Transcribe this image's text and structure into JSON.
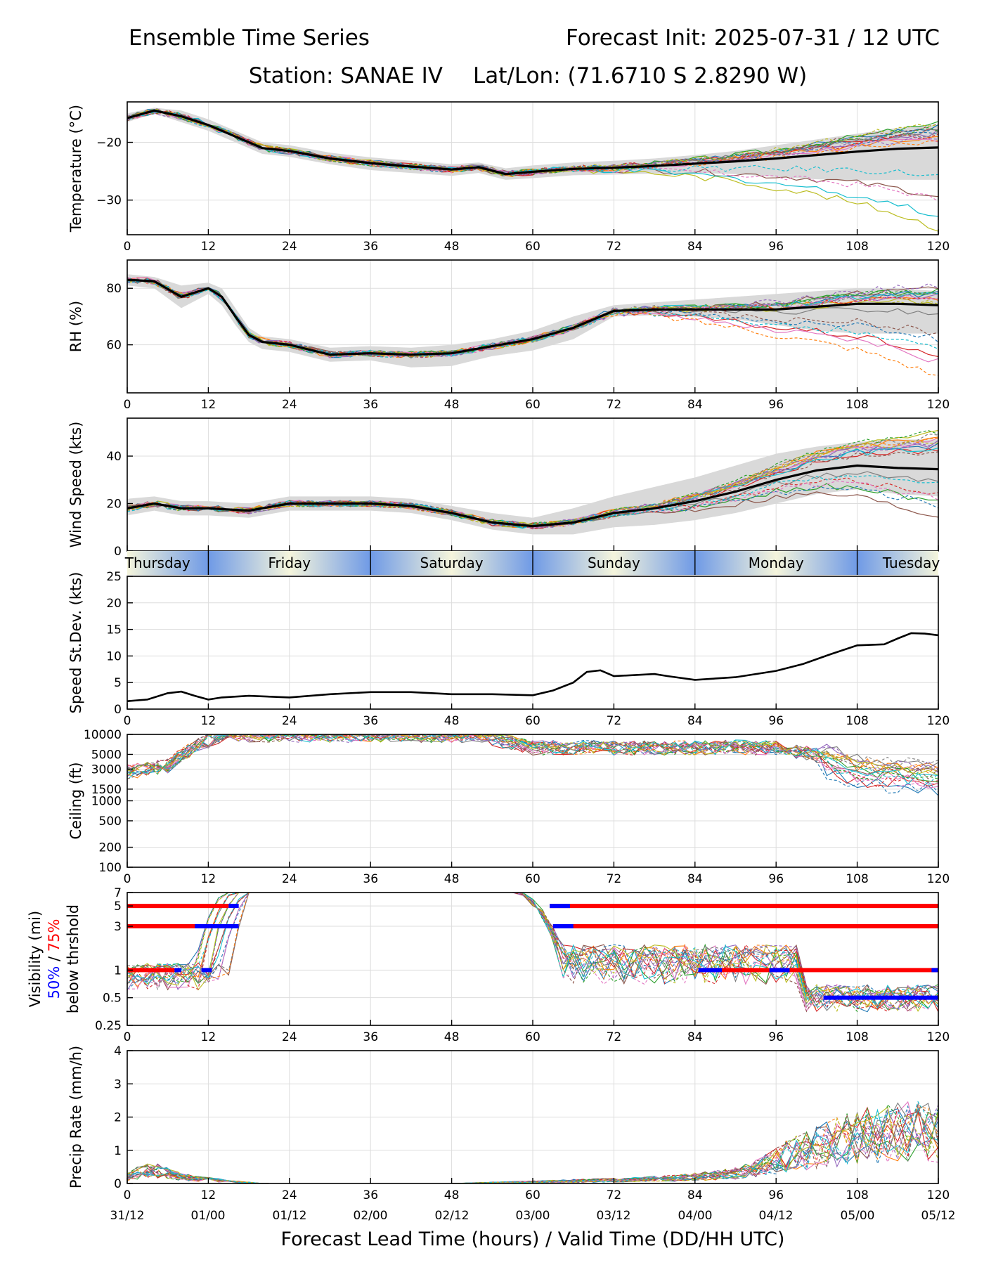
{
  "header": {
    "title_left": "Ensemble Time Series",
    "title_right": "Forecast Init: 2025-07-31 / 12 UTC",
    "station": "Station: SANAE IV",
    "latlon": "Lat/Lon: (71.6710 S 2.8290 W)"
  },
  "xaxis": {
    "ticks": [
      0,
      12,
      24,
      36,
      48,
      60,
      72,
      84,
      96,
      108,
      120
    ],
    "tick_labels": [
      "0",
      "12",
      "24",
      "36",
      "48",
      "60",
      "72",
      "84",
      "96",
      "108",
      "120"
    ],
    "valid_labels": [
      "31/12",
      "01/00",
      "01/12",
      "02/00",
      "02/12",
      "03/00",
      "03/12",
      "04/00",
      "04/12",
      "05/00",
      "05/12"
    ],
    "label": "Forecast Lead Time (hours) / Valid Time (DD/HH UTC)",
    "range": [
      0,
      120
    ]
  },
  "day_strip": {
    "days": [
      "Thursday",
      "Friday",
      "Saturday",
      "Sunday",
      "Monday",
      "Tuesday"
    ],
    "colors": {
      "midnight": "#6f9ae6",
      "noon": "#f5f5dc"
    }
  },
  "colors": {
    "ensemble": [
      "#1f77b4",
      "#ff7f0e",
      "#2ca02c",
      "#d62728",
      "#9467bd",
      "#8c564b",
      "#e377c2",
      "#7f7f7f",
      "#bcbd22",
      "#17becf"
    ],
    "mean": "#000000",
    "spread": "#d9d9d9",
    "p50": "#0000ff",
    "p75": "#ff0000"
  },
  "chart_data": [
    {
      "type": "line",
      "ylabel": "Temperature (°C)",
      "ylim": [
        -36,
        -13
      ],
      "yticks": [
        -20,
        -30
      ],
      "ytick_labels": [
        "−20",
        "−30"
      ],
      "grid": true,
      "x": [
        0,
        4,
        8,
        12,
        16,
        20,
        24,
        30,
        36,
        42,
        48,
        52,
        56,
        60,
        66,
        72,
        78,
        84,
        90,
        96,
        102,
        108,
        114,
        120
      ],
      "mean": [
        -15.8,
        -14.5,
        -15.5,
        -17,
        -19,
        -21,
        -21.5,
        -22.8,
        -23.6,
        -24.2,
        -24.7,
        -24.3,
        -25.5,
        -25.1,
        -24.6,
        -24.4,
        -24.1,
        -23.7,
        -23.3,
        -22.8,
        -22.2,
        -21.6,
        -21.1,
        -20.9
      ],
      "spread_upper": [
        -15,
        -14,
        -14.5,
        -16,
        -18,
        -20,
        -20.5,
        -21.8,
        -22.6,
        -23.2,
        -23.8,
        -23.5,
        -24.5,
        -24,
        -23.5,
        -23.2,
        -22.8,
        -22.2,
        -21.5,
        -20.5,
        -19.5,
        -18.5,
        -17.5,
        -17
      ],
      "spread_lower": [
        -16.5,
        -15,
        -16.5,
        -18,
        -20,
        -22,
        -22.5,
        -23.8,
        -24.8,
        -25.3,
        -25.8,
        -25.3,
        -26.5,
        -26.2,
        -25.7,
        -25.6,
        -25.4,
        -25.3,
        -25.5,
        -26,
        -26.4,
        -26.6,
        -26.5,
        -26.5
      ],
      "member_end_offsets": [
        3.5,
        2,
        4,
        3,
        2.5,
        -8.5,
        1.5,
        3,
        -14,
        -12,
        2.8,
        1,
        3.2,
        2.2,
        1.8,
        3.8,
        -9,
        2.5,
        4.2,
        -5
      ]
    },
    {
      "type": "line",
      "ylabel": "RH (%)",
      "ylim": [
        43,
        90
      ],
      "yticks": [
        80,
        60
      ],
      "ytick_labels": [
        "80",
        "60"
      ],
      "grid": true,
      "x": [
        0,
        4,
        8,
        12,
        14,
        16,
        18,
        20,
        24,
        30,
        36,
        42,
        48,
        54,
        60,
        66,
        72,
        78,
        84,
        90,
        96,
        102,
        108,
        114,
        120
      ],
      "mean": [
        83,
        82.5,
        77,
        80,
        77,
        70,
        63.5,
        61,
        60,
        56.5,
        57,
        56.5,
        57,
        59.5,
        62,
        66,
        72,
        72.5,
        72.5,
        72.5,
        72.5,
        73.5,
        74.5,
        74.5,
        74
      ],
      "spread_upper": [
        85,
        84,
        81,
        82,
        80,
        73,
        66,
        63,
        62,
        59,
        59.5,
        59,
        60,
        62,
        65,
        70,
        74,
        75,
        76,
        77,
        78,
        79,
        80,
        80,
        79
      ],
      "spread_lower": [
        81,
        80,
        73,
        78,
        74,
        67,
        61,
        58.5,
        57.5,
        54,
        54.5,
        52,
        52.5,
        56,
        58,
        62,
        70,
        70.5,
        70,
        69,
        67,
        65,
        64,
        64,
        64
      ],
      "member_end_offsets": [
        4,
        2,
        5,
        -18,
        3,
        6,
        -20,
        -3,
        1,
        4,
        -12,
        -25,
        5,
        2,
        7,
        -10,
        3,
        4,
        1,
        -16
      ]
    },
    {
      "type": "line",
      "ylabel": "Wind Speed (kts)",
      "ylim": [
        0,
        56
      ],
      "yticks": [
        40,
        20,
        0
      ],
      "ytick_labels": [
        "40",
        "20",
        "0"
      ],
      "grid": true,
      "x": [
        0,
        4,
        8,
        12,
        18,
        24,
        30,
        36,
        42,
        48,
        54,
        60,
        66,
        72,
        78,
        84,
        90,
        96,
        102,
        108,
        114,
        120
      ],
      "mean": [
        18,
        20,
        18,
        18,
        17,
        20,
        20,
        20,
        19,
        16,
        12,
        10.5,
        12,
        16,
        18,
        21,
        25,
        30,
        34,
        36,
        35,
        34.5
      ],
      "spread_upper": [
        22,
        23,
        21,
        21,
        20,
        23,
        23,
        23,
        22,
        19,
        16,
        14,
        18,
        23,
        27,
        31,
        36,
        41,
        44,
        46,
        47,
        47
      ],
      "spread_lower": [
        15,
        17,
        15,
        15,
        14,
        17,
        17,
        17,
        16,
        13,
        9,
        7,
        7,
        10,
        11,
        13,
        16,
        20,
        24,
        26,
        24,
        23
      ],
      "member_end_offsets": [
        10,
        14,
        -14,
        8,
        11,
        -20,
        12,
        -5,
        15,
        9,
        -15,
        13,
        16,
        -10,
        11,
        7,
        -12,
        14,
        12,
        -6
      ]
    },
    {
      "type": "line",
      "ylabel": "Speed St.Dev. (kts)",
      "ylim": [
        0,
        25
      ],
      "yticks": [
        0,
        5,
        10,
        15,
        20,
        25
      ],
      "ytick_labels": [
        "0",
        "5",
        "10",
        "15",
        "20",
        "25"
      ],
      "grid": true,
      "x": [
        0,
        3,
        6,
        8,
        10,
        12,
        14,
        18,
        24,
        30,
        36,
        42,
        48,
        54,
        60,
        63,
        66,
        68,
        70,
        72,
        78,
        80,
        84,
        90,
        96,
        100,
        104,
        108,
        112,
        114,
        116,
        118,
        120
      ],
      "values": [
        1.5,
        1.8,
        3,
        3.3,
        2.5,
        1.8,
        2.2,
        2.5,
        2.2,
        2.8,
        3.2,
        3.2,
        2.8,
        2.8,
        2.6,
        3.5,
        5,
        7,
        7.3,
        6.2,
        6.6,
        6.2,
        5.5,
        6,
        7.2,
        8.5,
        10.3,
        12,
        12.2,
        13.3,
        14.3,
        14.2,
        13.9
      ]
    },
    {
      "type": "line",
      "ylabel": "Ceiling (ft)",
      "yscale": "log",
      "ylim": [
        100,
        10000
      ],
      "yticks": [
        10000,
        5000,
        3000,
        1500,
        1000,
        500,
        200,
        100
      ],
      "ytick_labels": [
        "10000",
        "5000",
        "3000",
        "1500",
        "1000",
        "500",
        "200",
        "100"
      ],
      "grid": true,
      "x": [
        0,
        6,
        10,
        14,
        16,
        52,
        56,
        60,
        66,
        72,
        78,
        84,
        90,
        96,
        102,
        108,
        114,
        120
      ],
      "ensemble_median": [
        2800,
        3400,
        6500,
        10000,
        10000,
        10000,
        8000,
        6500,
        6500,
        6500,
        6400,
        6400,
        6600,
        6400,
        5000,
        3000,
        2800,
        2500
      ]
    },
    {
      "type": "line",
      "ylabel": "Visibility (mi)",
      "ylabel_p50": "50%",
      "ylabel_sep": " / ",
      "ylabel_p75": "75%",
      "ylabel_sub": "below thrshold",
      "yscale": "log",
      "ylim": [
        0.25,
        7
      ],
      "yticks": [
        7,
        5,
        3,
        1,
        0.5,
        0.25
      ],
      "ytick_labels": [
        "7",
        "5",
        "3",
        "1",
        "0.5",
        "0.25"
      ],
      "grid": true,
      "threshold_bars_75": [
        {
          "level": 5,
          "start": 0,
          "end": 15
        },
        {
          "level": 3,
          "start": 0,
          "end": 15
        },
        {
          "level": 1,
          "start": 0,
          "end": 7
        },
        {
          "level": 5,
          "start": 62.5,
          "end": 120
        },
        {
          "level": 3,
          "start": 63,
          "end": 120
        },
        {
          "level": 1,
          "start": 85,
          "end": 120
        }
      ],
      "threshold_bars_50": [
        {
          "level": 5,
          "start": 15,
          "end": 16.5
        },
        {
          "level": 3,
          "start": 10,
          "end": 16.5
        },
        {
          "level": 1,
          "start": 7,
          "end": 8
        },
        {
          "level": 1,
          "start": 11,
          "end": 12.5
        },
        {
          "level": 5,
          "start": 62.5,
          "end": 65.5
        },
        {
          "level": 3,
          "start": 63,
          "end": 66
        },
        {
          "level": 1,
          "start": 84.5,
          "end": 88
        },
        {
          "level": 1,
          "start": 95,
          "end": 98
        },
        {
          "level": 1,
          "start": 119,
          "end": 120
        },
        {
          "level": 0.5,
          "start": 103,
          "end": 120
        }
      ]
    },
    {
      "type": "line",
      "ylabel": "Precip Rate (mm/h)",
      "ylim": [
        0,
        4
      ],
      "yticks": [
        4,
        3,
        2,
        1,
        0
      ],
      "ytick_labels": [
        "4",
        "3",
        "2",
        "1",
        "0"
      ],
      "grid": true,
      "x": [
        0,
        2,
        4,
        6,
        8,
        10,
        12,
        16,
        20,
        48,
        60,
        72,
        80,
        84,
        90,
        94,
        96,
        100,
        104,
        108,
        112,
        116,
        120
      ],
      "ensemble_mean": [
        0.2,
        0.35,
        0.4,
        0.3,
        0.2,
        0.15,
        0.12,
        0.05,
        0,
        0,
        0.05,
        0.1,
        0.15,
        0.2,
        0.3,
        0.5,
        0.7,
        1.0,
        1.2,
        1.4,
        1.5,
        1.6,
        1.5
      ]
    }
  ]
}
